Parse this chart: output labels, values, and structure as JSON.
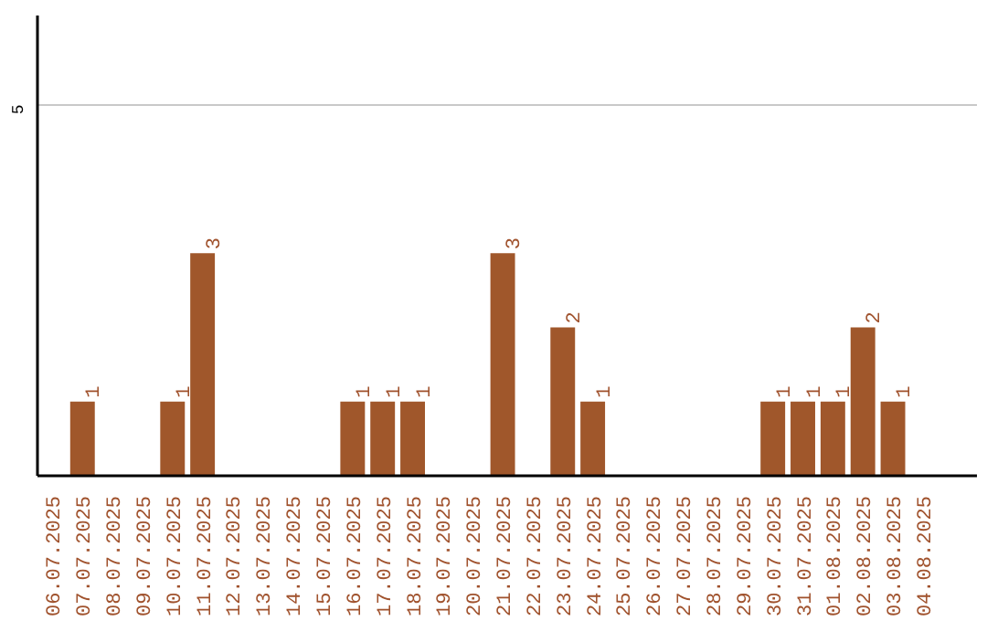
{
  "chart_data": {
    "type": "bar",
    "categories": [
      "06.07.2025",
      "07.07.2025",
      "08.07.2025",
      "09.07.2025",
      "10.07.2025",
      "11.07.2025",
      "12.07.2025",
      "13.07.2025",
      "14.07.2025",
      "15.07.2025",
      "16.07.2025",
      "17.07.2025",
      "18.07.2025",
      "19.07.2025",
      "20.07.2025",
      "21.07.2025",
      "22.07.2025",
      "23.07.2025",
      "24.07.2025",
      "25.07.2025",
      "26.07.2025",
      "27.07.2025",
      "28.07.2025",
      "29.07.2025",
      "30.07.2025",
      "31.07.2025",
      "01.08.2025",
      "02.08.2025",
      "03.08.2025",
      "04.08.2025"
    ],
    "values": [
      0,
      1,
      0,
      0,
      1,
      3,
      0,
      0,
      0,
      0,
      1,
      1,
      1,
      0,
      0,
      3,
      0,
      2,
      1,
      0,
      0,
      0,
      0,
      0,
      1,
      1,
      1,
      2,
      1,
      0
    ],
    "value_labels": [
      null,
      "1",
      null,
      null,
      "1",
      "3",
      null,
      null,
      null,
      null,
      "1",
      "1",
      "1",
      null,
      null,
      "3",
      null,
      "2",
      "1",
      null,
      null,
      null,
      null,
      null,
      "1",
      "1",
      "1",
      "2",
      "1",
      null
    ],
    "color": "#a0572b",
    "ylim": [
      0,
      6.2
    ],
    "yticks": [
      5
    ],
    "grid": "y"
  }
}
